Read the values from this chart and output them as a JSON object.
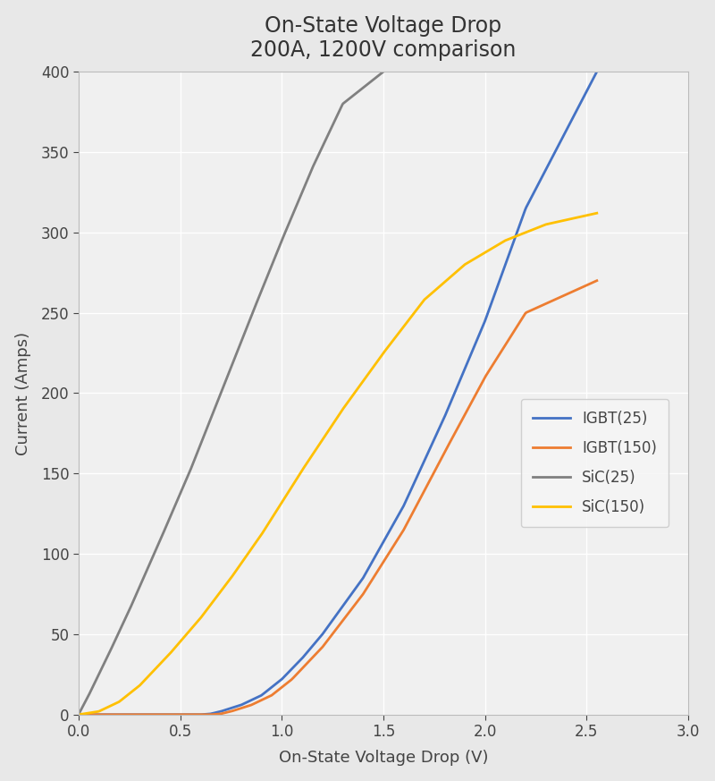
{
  "title_line1": "On-State Voltage Drop",
  "title_line2": "200A, 1200V comparison",
  "xlabel": "On-State Voltage Drop (V)",
  "ylabel": "Current (Amps)",
  "xlim": [
    0,
    3
  ],
  "ylim": [
    0,
    400
  ],
  "xticks": [
    0,
    0.5,
    1.0,
    1.5,
    2.0,
    2.5,
    3.0
  ],
  "yticks": [
    0,
    50,
    100,
    150,
    200,
    250,
    300,
    350,
    400
  ],
  "fig_background": "#e8e8e8",
  "plot_background": "#f0f0f0",
  "grid_color": "#ffffff",
  "series": {
    "IGBT25": {
      "label": "IGBT(25)",
      "color": "#4472C4",
      "x": [
        0.0,
        0.5,
        0.6,
        0.65,
        0.7,
        0.8,
        0.9,
        1.0,
        1.1,
        1.2,
        1.4,
        1.6,
        1.8,
        2.0,
        2.2,
        2.55
      ],
      "y": [
        0.0,
        0.0,
        0.0,
        0.5,
        2.0,
        6.0,
        12.0,
        22.0,
        35.0,
        50.0,
        85.0,
        130.0,
        185.0,
        245.0,
        315.0,
        400.0
      ]
    },
    "IGBT150": {
      "label": "IGBT(150)",
      "color": "#ED7D31",
      "x": [
        0.0,
        0.55,
        0.65,
        0.7,
        0.75,
        0.85,
        0.95,
        1.05,
        1.2,
        1.4,
        1.6,
        1.8,
        2.0,
        2.2,
        2.55
      ],
      "y": [
        0.0,
        0.0,
        0.0,
        0.5,
        2.0,
        6.0,
        12.0,
        22.0,
        42.0,
        75.0,
        115.0,
        163.0,
        210.0,
        250.0,
        270.0
      ]
    },
    "SiC25": {
      "label": "SiC(25)",
      "color": "#808080",
      "x": [
        0.0,
        0.05,
        0.15,
        0.25,
        0.4,
        0.55,
        0.7,
        0.85,
        1.0,
        1.15,
        1.3,
        1.5
      ],
      "y": [
        0.0,
        12.0,
        38.0,
        65.0,
        108.0,
        152.0,
        200.0,
        248.0,
        295.0,
        340.0,
        380.0,
        400.0
      ]
    },
    "SiC150": {
      "label": "SiC(150)",
      "color": "#FFC000",
      "x": [
        0.0,
        0.1,
        0.2,
        0.3,
        0.45,
        0.6,
        0.75,
        0.9,
        1.1,
        1.3,
        1.5,
        1.7,
        1.9,
        2.1,
        2.3,
        2.55
      ],
      "y": [
        0.0,
        2.0,
        8.0,
        18.0,
        38.0,
        60.0,
        85.0,
        112.0,
        152.0,
        190.0,
        225.0,
        258.0,
        280.0,
        295.0,
        305.0,
        312.0
      ]
    }
  },
  "title_fontsize": 17,
  "axis_label_fontsize": 13,
  "tick_fontsize": 12,
  "legend_fontsize": 12,
  "line_width": 2.0,
  "figsize": [
    8.0,
    8.73
  ]
}
